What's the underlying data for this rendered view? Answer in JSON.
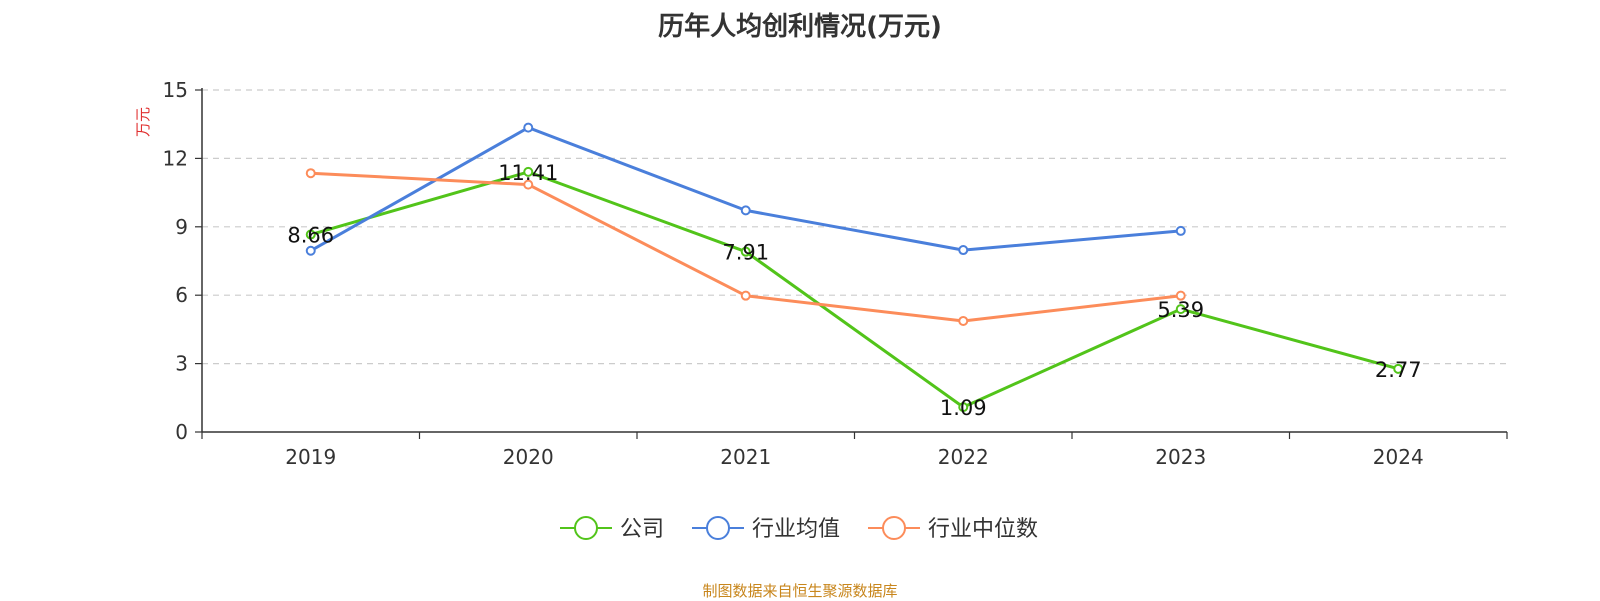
{
  "chart_data": {
    "type": "line",
    "title": "历年人均创利情况(万元)",
    "ylabel": "万元",
    "xlabel": "",
    "ylim": [
      0,
      15
    ],
    "yticks": [
      0,
      3,
      6,
      9,
      12,
      15
    ],
    "grid": true,
    "legend_position": "bottom-center",
    "categories": [
      "2019",
      "2020",
      "2021",
      "2022",
      "2023",
      "2024"
    ],
    "series": [
      {
        "name": "公司",
        "color": "#52c41a",
        "values": [
          8.66,
          11.41,
          7.91,
          1.09,
          5.39,
          2.77
        ],
        "labels": [
          "8.66",
          "11.41",
          "7.91",
          "1.09",
          "5.39",
          "2.77"
        ]
      },
      {
        "name": "行业均值",
        "color": "#4a7fdb",
        "values": [
          7.95,
          13.35,
          9.72,
          7.98,
          8.82,
          null
        ]
      },
      {
        "name": "行业中位数",
        "color": "#fc8c5a",
        "values": [
          11.35,
          10.85,
          5.98,
          4.87,
          5.98,
          null
        ]
      }
    ]
  },
  "source_text": "制图数据来自恒生聚源数据库"
}
